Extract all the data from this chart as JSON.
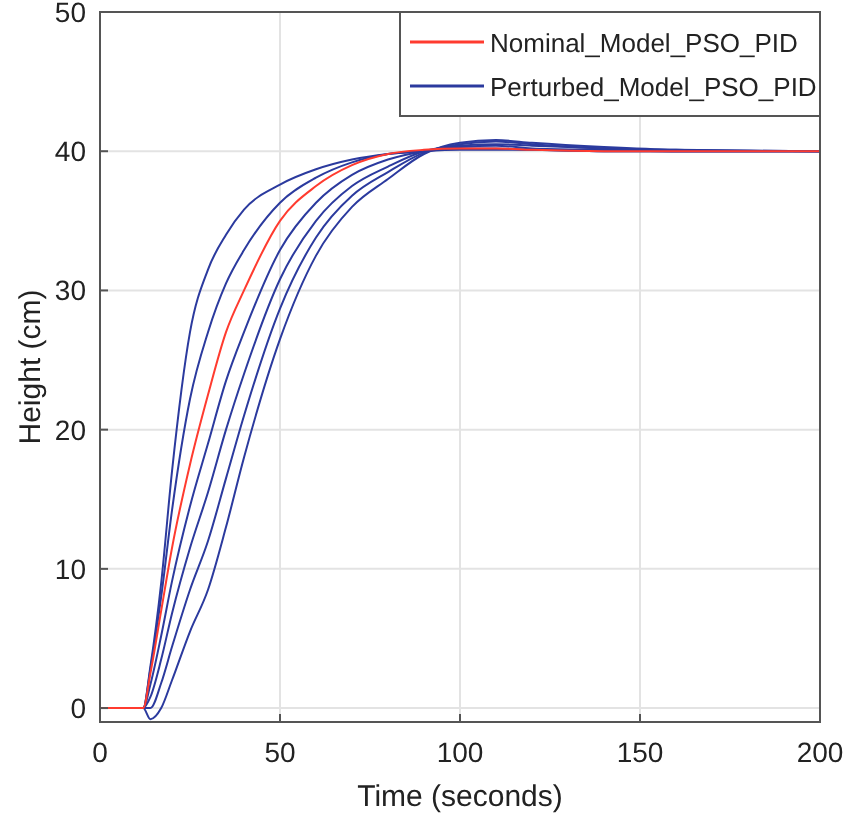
{
  "chart_data": {
    "type": "line",
    "xlabel": "Time (seconds)",
    "ylabel": "Height (cm)",
    "x": [
      0,
      12,
      14,
      17,
      20,
      25,
      30,
      35,
      40,
      50,
      60,
      70,
      80,
      90,
      100,
      110,
      120,
      140,
      160,
      200
    ],
    "xlim": [
      0,
      200
    ],
    "xticks": [
      0,
      50,
      100,
      150,
      200
    ],
    "ylim": [
      -1,
      50
    ],
    "yticks": [
      0,
      10,
      20,
      30,
      40,
      50
    ],
    "grid": true,
    "legend": "top right",
    "series": [
      {
        "name": "Perturbed_Model_PSO_PID",
        "color": "#2b3a9e",
        "values": [
          0,
          0,
          3,
          9,
          17,
          27,
          31.5,
          34,
          35.8,
          37.6,
          38.7,
          39.4,
          39.8,
          40,
          40.1,
          40.1,
          40.1,
          40,
          40,
          40
        ]
      },
      {
        "color": "#2b3a9e",
        "values": [
          0,
          0,
          2.8,
          8,
          14.2,
          22.2,
          27,
          30.5,
          32.9,
          36.3,
          38.1,
          39.2,
          39.8,
          40,
          40.2,
          40.2,
          40.1,
          40,
          40,
          40
        ]
      },
      {
        "color": "#2b3a9e",
        "values": [
          0,
          0,
          1.7,
          5.2,
          9.1,
          14.5,
          19,
          23.5,
          27,
          32.9,
          36.3,
          38.3,
          39.4,
          40,
          40.3,
          40.4,
          40.2,
          40.1,
          40,
          40
        ]
      },
      {
        "color": "#2b3a9e",
        "values": [
          0,
          0,
          0.8,
          3.5,
          6.8,
          11.5,
          15.5,
          20,
          24,
          30.8,
          35,
          37.5,
          38.9,
          40,
          40.4,
          40.5,
          40.4,
          40.2,
          40,
          40
        ]
      },
      {
        "color": "#2b3a9e",
        "values": [
          0,
          0,
          0,
          1.8,
          4.4,
          8.5,
          12,
          16.5,
          21,
          28.7,
          33.8,
          36.8,
          38.5,
          39.9,
          40.5,
          40.7,
          40.5,
          40.2,
          40.1,
          40
        ]
      },
      {
        "color": "#2b3a9e",
        "values": [
          0,
          0,
          -0.8,
          0,
          2,
          5.5,
          8.5,
          13,
          18,
          26.5,
          32.5,
          36,
          38,
          39.8,
          40.6,
          40.8,
          40.6,
          40.3,
          40.1,
          40
        ]
      },
      {
        "name": "Nominal_Model_PSO_PID",
        "color": "#ff3b2f",
        "values": [
          0,
          0,
          2.5,
          7,
          11.5,
          17.5,
          22.5,
          27,
          30,
          35,
          37.5,
          39,
          39.8,
          40.1,
          40.2,
          40.2,
          40.1,
          40,
          40,
          40
        ]
      }
    ]
  }
}
